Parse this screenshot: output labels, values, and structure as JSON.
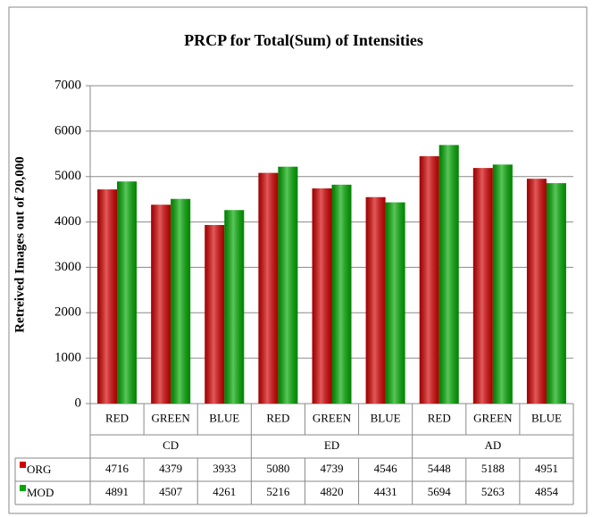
{
  "chart_data": {
    "type": "bar",
    "title": "PRCP for Total(Sum) of Intensities",
    "y_label": "Retreived Images out of 20,000",
    "categories": [
      "RED",
      "GREEN",
      "BLUE",
      "RED",
      "GREEN",
      "BLUE",
      "RED",
      "GREEN",
      "BLUE"
    ],
    "groups": [
      "CD",
      "ED",
      "AD"
    ],
    "series": [
      {
        "name": "ORG",
        "color": "#d40000",
        "values": [
          4716,
          4379,
          3933,
          5080,
          4739,
          4546,
          5448,
          5188,
          4951
        ]
      },
      {
        "name": "MOD",
        "color": "#00a800",
        "values": [
          4891,
          4507,
          4261,
          5216,
          4820,
          4431,
          5694,
          5263,
          4854
        ]
      }
    ],
    "ylim": [
      0,
      7000
    ],
    "yticks": [
      0,
      1000,
      2000,
      3000,
      4000,
      5000,
      6000,
      7000
    ],
    "grid": true
  }
}
